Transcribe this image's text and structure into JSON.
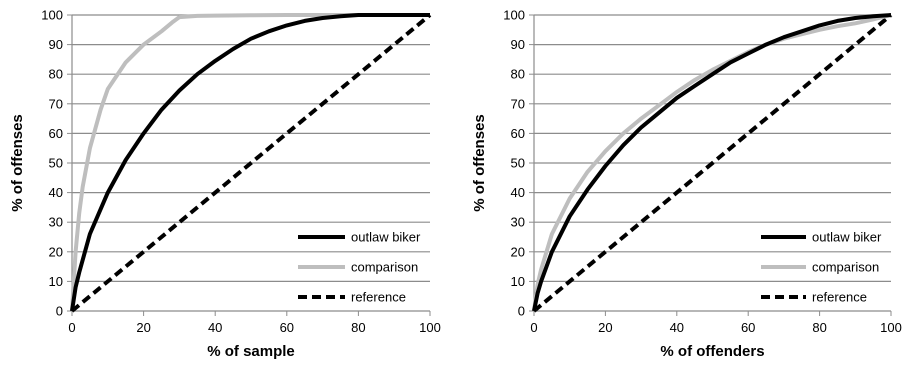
{
  "chart_data": [
    {
      "type": "line",
      "title": "",
      "xlabel": "% of sample",
      "ylabel": "% of offenses",
      "xlim": [
        0,
        100
      ],
      "ylim": [
        0,
        100
      ],
      "xticks": [
        "0",
        "20",
        "40",
        "60",
        "80",
        "100"
      ],
      "yticks": [
        "0",
        "10",
        "20",
        "30",
        "40",
        "50",
        "60",
        "70",
        "80",
        "90",
        "100"
      ],
      "grid": "horizontal",
      "legend_position": "bottom-right",
      "series": [
        {
          "name": "outlaw biker",
          "color": "#000000",
          "style": "solid",
          "x": [
            0,
            1,
            2,
            5,
            10,
            15,
            20,
            25,
            30,
            35,
            40,
            45,
            50,
            55,
            60,
            65,
            70,
            75,
            80,
            85,
            90,
            100
          ],
          "y": [
            0,
            8,
            13,
            26,
            40,
            51,
            60,
            68,
            74.5,
            80,
            84.5,
            88.5,
            92,
            94.5,
            96.5,
            98,
            99,
            99.6,
            100,
            100,
            100,
            100
          ]
        },
        {
          "name": "comparison",
          "color": "#bebebe",
          "style": "solid",
          "x": [
            0,
            0.5,
            1,
            2,
            3,
            5,
            8,
            10,
            15,
            20,
            25,
            28,
            30,
            35,
            40,
            50,
            60,
            70,
            80,
            90,
            100
          ],
          "y": [
            0,
            10,
            20,
            33,
            42,
            55,
            68,
            75,
            84,
            90,
            94.5,
            97.5,
            99.3,
            99.7,
            99.8,
            99.9,
            100,
            100,
            100,
            100,
            100
          ]
        },
        {
          "name": "reference",
          "color": "#000000",
          "style": "dashed",
          "x": [
            0,
            100
          ],
          "y": [
            0,
            100
          ]
        }
      ]
    },
    {
      "type": "line",
      "title": "",
      "xlabel": "% of offenders",
      "ylabel": "% of offenses",
      "xlim": [
        0,
        100
      ],
      "ylim": [
        0,
        100
      ],
      "xticks": [
        "0",
        "20",
        "40",
        "60",
        "80",
        "100"
      ],
      "yticks": [
        "0",
        "10",
        "20",
        "30",
        "40",
        "50",
        "60",
        "70",
        "80",
        "90",
        "100"
      ],
      "grid": "horizontal",
      "legend_position": "bottom-right",
      "series": [
        {
          "name": "outlaw biker",
          "color": "#000000",
          "style": "solid",
          "x": [
            0,
            1,
            2,
            5,
            10,
            15,
            20,
            25,
            30,
            35,
            40,
            45,
            50,
            55,
            60,
            65,
            70,
            75,
            80,
            85,
            90,
            95,
            100
          ],
          "y": [
            0,
            6,
            10,
            20,
            32,
            41,
            49,
            56,
            62,
            67,
            72,
            76,
            80,
            84,
            87,
            90,
            92.5,
            94.5,
            96.5,
            98,
            99,
            99.6,
            100
          ]
        },
        {
          "name": "comparison",
          "color": "#bebebe",
          "style": "solid",
          "x": [
            0,
            1,
            2,
            5,
            10,
            15,
            20,
            25,
            30,
            35,
            40,
            45,
            50,
            55,
            60,
            65,
            70,
            75,
            80,
            85,
            90,
            95,
            100
          ],
          "y": [
            0,
            9,
            14,
            26,
            38,
            47,
            54,
            60,
            65,
            69.5,
            74,
            78,
            81.5,
            84.5,
            87.5,
            90,
            92,
            93.5,
            95,
            96.2,
            97.2,
            98.5,
            100
          ]
        },
        {
          "name": "reference",
          "color": "#000000",
          "style": "dashed",
          "x": [
            0,
            100
          ],
          "y": [
            0,
            100
          ]
        }
      ]
    }
  ]
}
